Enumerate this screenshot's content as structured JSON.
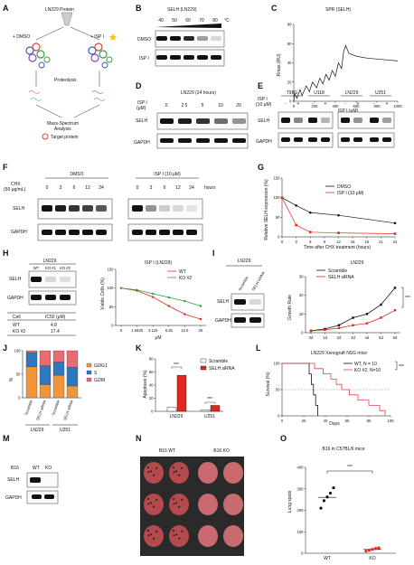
{
  "colors": {
    "red": "#e0281e",
    "green": "#2e9e3a",
    "black": "#111111",
    "g0g1": "#f0953c",
    "s_phase": "#2f78be",
    "g2m": "#e76b73",
    "pink_line": "#e04545"
  },
  "panels": {
    "A": {
      "letter": "A",
      "title": "LN229 Protein",
      "dmso": "+ DMSO",
      "ispi": "+ ISP I",
      "proteolysis": "Proteolysis",
      "ms_line1": "Mass-Spectrum",
      "ms_line2": "Analysis",
      "target": "Target protein"
    },
    "B": {
      "letter": "B",
      "title": "SELH (LN229)",
      "temps": [
        "40",
        "50",
        "60",
        "70",
        "80"
      ],
      "unit": "°C",
      "rows": [
        "DMSO",
        "ISP I"
      ]
    },
    "C": {
      "letter": "C",
      "title": "SPR (SELH)",
      "ylabel": "Rmax (RU)",
      "xlabel": "ISP I (μM)",
      "chart_data": {
        "type": "line",
        "x": [
          0,
          10,
          30,
          60,
          80,
          120,
          150,
          180,
          220,
          250,
          280,
          310,
          340,
          370,
          400,
          430,
          460,
          480,
          500,
          530,
          600,
          700,
          800,
          900,
          1000
        ],
        "y": [
          0,
          8,
          3,
          12,
          6,
          16,
          10,
          20,
          14,
          24,
          18,
          28,
          22,
          32,
          26,
          40,
          34,
          52,
          58,
          50,
          47,
          45,
          44,
          43,
          42
        ],
        "xlim": [
          0,
          1000
        ],
        "ylim": [
          0,
          80
        ],
        "xticks": [
          "0",
          "200",
          "400",
          "600",
          "800",
          "1000"
        ],
        "yticks": [
          "0",
          "20",
          "40",
          "60",
          "80"
        ]
      }
    },
    "D": {
      "letter": "D",
      "title": "LN229 (24 hours)",
      "ispi_label": "ISP I",
      "unit_label": "(μM)",
      "doses": [
        "0",
        "2.5",
        "5",
        "10",
        "20"
      ],
      "rows": [
        "SELH",
        "GAPDH"
      ]
    },
    "E": {
      "letter": "E",
      "ispi_label": "ISP I",
      "unit_label": "(10 μM)",
      "cells": [
        "T98G",
        "U118",
        "LN229",
        "U251"
      ],
      "signs": [
        "-",
        "+",
        "-",
        "+",
        "-",
        "+",
        "-",
        "+"
      ],
      "rows": [
        "SELH",
        "GAPDH"
      ]
    },
    "F": {
      "letter": "F",
      "cond_dmso": "DMSO",
      "cond_ispi": "ISP I (10 μM)",
      "chx_line1": "CHX",
      "chx_line2": "(50 μg/mL)",
      "times": [
        "0",
        "3",
        "6",
        "12",
        "24"
      ],
      "hours": "hours",
      "rows": [
        "SELH",
        "GAPDH"
      ]
    },
    "G": {
      "letter": "G",
      "ylabel": "Relative SELH expression (%)",
      "xlabel": "Time after CHX treatment (hours)",
      "chart_data": {
        "type": "line",
        "x": [
          0,
          3,
          6,
          9,
          12,
          15,
          18,
          21,
          24
        ],
        "xlim": [
          0,
          24
        ],
        "ylim": [
          0,
          150
        ],
        "xticks": [
          "0",
          "3",
          "6",
          "9",
          "12",
          "15",
          "18",
          "21",
          "24"
        ],
        "yticks": [
          "0",
          "50",
          "100",
          "150"
        ],
        "series": [
          {
            "name": "DMSO",
            "x": [
              0,
              3,
              6,
              12,
              24
            ],
            "values": [
              100,
              80,
              62,
              55,
              35
            ]
          },
          {
            "name": "ISP I (10 μM)",
            "x": [
              0,
              3,
              6,
              12,
              24
            ],
            "values": [
              100,
              30,
              12,
              10,
              8
            ]
          }
        ]
      }
    },
    "H": {
      "letter": "H",
      "blot_title": "LN229",
      "lanes": [
        "WT",
        "KO #1",
        "KO #2"
      ],
      "rows": [
        "SELH",
        "GAPDH"
      ],
      "table_head": [
        "Cell",
        "IC50 (μM)"
      ],
      "table_rows": [
        [
          "WT",
          "4.8"
        ],
        [
          "KO #2",
          "17.4"
        ]
      ],
      "chart_title": "ISP I (LN229)",
      "ylabel": "Viable Cells (%)",
      "xlabel": "μM",
      "chart_data": {
        "type": "line",
        "categories": [
          "0",
          "1.5625",
          "3.125",
          "6.25",
          "12.5",
          "25"
        ],
        "ylim": [
          0,
          150
        ],
        "yticks": [
          "0",
          "50",
          "100",
          "150"
        ],
        "series": [
          {
            "name": "WT",
            "values": [
              100,
              93,
              76,
              52,
              30,
              17
            ]
          },
          {
            "name": "KO #2",
            "values": [
              100,
              95,
              85,
              75,
              65,
              52
            ]
          }
        ]
      }
    },
    "I": {
      "letter": "I",
      "blot_title": "LN229",
      "lanes": [
        "Scramble",
        "SELH siRNA"
      ],
      "rows": [
        "SELH",
        "GAPDH"
      ],
      "chart_title": "LN229",
      "ylabel": "Growth Rate",
      "sig": "***",
      "chart_data": {
        "type": "line",
        "categories": [
          "0d",
          "1d",
          "2d",
          "3d",
          "4d",
          "5d",
          "6d"
        ],
        "ylim": [
          0,
          30
        ],
        "yticks": [
          "0",
          "10",
          "20",
          "30"
        ],
        "series": [
          {
            "name": "Scramble",
            "values": [
              1,
              2,
              4,
              8,
              10,
              15,
              24
            ]
          },
          {
            "name": "SELH siRNA",
            "values": [
              1,
              1.5,
              2.5,
              4,
              5,
              8,
              12
            ]
          }
        ]
      }
    },
    "J": {
      "letter": "J",
      "ylabel": "%",
      "groups": [
        "LN229",
        "U251"
      ],
      "chart_data": {
        "type": "bar",
        "categories": [
          "Scramble",
          "SELH siRNA",
          "Scramble",
          "SELH siRNA"
        ],
        "ylim": [
          0,
          100
        ],
        "yticks": [
          "0",
          "50",
          "100"
        ],
        "series": [
          {
            "name": "G0/G1",
            "values": [
              66,
              28,
              48,
              25
            ]
          },
          {
            "name": "S",
            "values": [
              30,
              40,
              28,
              40
            ]
          },
          {
            "name": "G2/M",
            "values": [
              4,
              32,
              24,
              35
            ]
          }
        ]
      }
    },
    "K": {
      "letter": "K",
      "ylabel": "Apoptosis (%)",
      "sig": [
        "***",
        "***"
      ],
      "chart_data": {
        "type": "bar",
        "categories": [
          "LN229",
          "U251"
        ],
        "ylim": [
          0,
          80
        ],
        "yticks": [
          "0",
          "20",
          "40",
          "60",
          "80"
        ],
        "series": [
          {
            "name": "Scramble",
            "values": [
              6,
              2
            ]
          },
          {
            "name": "SELH siRNA",
            "values": [
              55,
              9
            ]
          }
        ]
      }
    },
    "L": {
      "letter": "L",
      "title": "LN229 Xenograft NSG mice",
      "ylabel": "Survival (%)",
      "xlabel": "Days",
      "sig": "***",
      "chart_data": {
        "type": "line",
        "xlim": [
          0,
          100
        ],
        "ylim": [
          0,
          100
        ],
        "xticks": [
          "0",
          "20",
          "40",
          "60",
          "80",
          "100"
        ],
        "yticks": [
          "0",
          "50",
          "100"
        ],
        "series": [
          {
            "name": "WT, N = 10",
            "x": [
              0,
              25,
              25,
              27,
              27,
              29,
              29,
              31,
              31,
              33,
              33
            ],
            "values": [
              100,
              100,
              80,
              80,
              60,
              60,
              40,
              40,
              20,
              20,
              0
            ]
          },
          {
            "name": "KO #2, N=10",
            "x": [
              0,
              30,
              30,
              38,
              38,
              45,
              45,
              50,
              50,
              55,
              55,
              62,
              62,
              70,
              70,
              80,
              80,
              90,
              90,
              95,
              95
            ],
            "values": [
              100,
              100,
              90,
              90,
              80,
              80,
              70,
              70,
              60,
              60,
              50,
              50,
              40,
              40,
              30,
              30,
              20,
              20,
              10,
              10,
              0
            ]
          }
        ]
      }
    },
    "M": {
      "letter": "M",
      "cell": "B16",
      "lanes": [
        "WT",
        "KO"
      ],
      "rows": [
        "SELH",
        "GAPDH"
      ]
    },
    "N": {
      "letter": "N",
      "wt": "B16 WT",
      "ko": "B16 KO"
    },
    "O": {
      "letter": "O",
      "title": "B16 in C57BL/6 mice",
      "ylabel": "Lung spots",
      "sig": "***",
      "chart_data": {
        "type": "scatter",
        "categories": [
          "WT",
          "KO"
        ],
        "ylim": [
          0,
          400
        ],
        "yticks": [
          "0",
          "100",
          "200",
          "300",
          "400"
        ],
        "series": [
          {
            "name": "WT",
            "values": [
              210,
              245,
              262,
              280,
              305
            ]
          },
          {
            "name": "KO",
            "values": [
              10,
              14,
              18,
              22,
              25
            ]
          }
        ]
      }
    }
  }
}
